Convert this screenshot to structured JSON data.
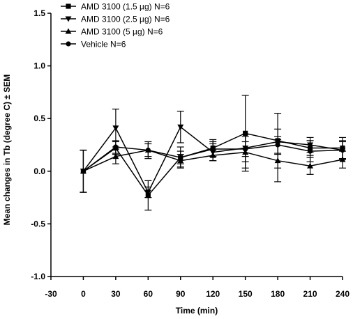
{
  "chart_data": {
    "type": "line",
    "xlabel": "Time (min)",
    "ylabel": "Mean changes in Tb (degree C) ± SEM",
    "xlim": [
      -30,
      240
    ],
    "ylim": [
      -1.0,
      1.5
    ],
    "xticks": [
      -30,
      0,
      30,
      60,
      90,
      120,
      150,
      180,
      210,
      240
    ],
    "yticks": [
      -1.0,
      -0.5,
      0.0,
      0.5,
      1.0,
      1.5
    ],
    "ytick_labels": [
      "-1.0",
      "-0.5",
      "0.0",
      "0.5",
      "1.0",
      "1.5"
    ],
    "x": [
      0,
      30,
      60,
      90,
      120,
      150,
      180,
      210,
      240
    ],
    "grid": false,
    "legend_position": "top-left",
    "series": [
      {
        "name": "AMD 3100 (1.5 µg) N=6",
        "marker": "square",
        "values": [
          0.0,
          0.22,
          -0.23,
          0.13,
          0.22,
          0.36,
          0.29,
          0.22,
          0.22
        ],
        "errors": [
          0.2,
          0.06,
          0.14,
          0.06,
          0.08,
          0.36,
          0.26,
          0.07,
          0.1
        ]
      },
      {
        "name": "AMD 3100 (2.5 µg) N=6",
        "marker": "triangle-down",
        "values": [
          0.0,
          0.41,
          -0.2,
          0.42,
          0.18,
          0.22,
          0.28,
          0.25,
          0.2
        ],
        "errors": [
          0.2,
          0.18,
          0.05,
          0.15,
          0.08,
          0.13,
          0.12,
          0.07,
          0.08
        ]
      },
      {
        "name": "AMD 3100 (5 µg) N=6",
        "marker": "triangle-up",
        "values": [
          0.0,
          0.14,
          0.2,
          0.1,
          0.15,
          0.18,
          0.1,
          0.05,
          0.11
        ],
        "errors": [
          0.2,
          0.07,
          0.06,
          0.06,
          0.05,
          0.15,
          0.2,
          0.08,
          0.08
        ]
      },
      {
        "name": "Vehicle N=6",
        "marker": "circle",
        "values": [
          0.0,
          0.23,
          0.2,
          0.13,
          0.21,
          0.21,
          0.25,
          0.19,
          0.2
        ],
        "errors": [
          0.2,
          0.06,
          0.08,
          0.1,
          0.07,
          0.07,
          0.08,
          0.1,
          0.09
        ]
      }
    ]
  }
}
